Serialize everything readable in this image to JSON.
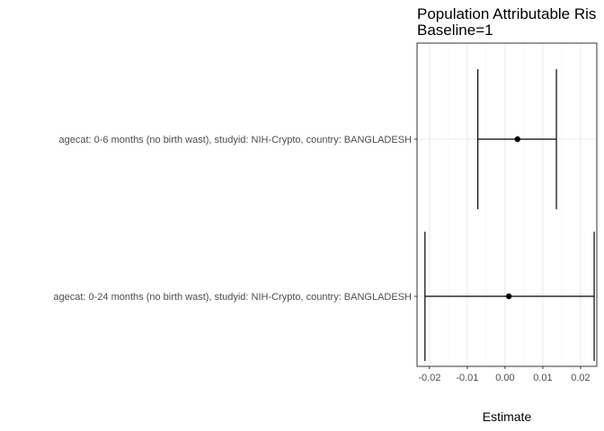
{
  "chart_data": {
    "type": "errorbar",
    "title": "Population Attributable Ris",
    "subtitle": "Baseline=1",
    "xlabel": "Estimate",
    "ylabel": "",
    "xlim": [
      -0.0233,
      0.0243
    ],
    "xticks": [
      "-0.02",
      "-0.01",
      "0.00",
      "0.01",
      "0.02"
    ],
    "xtick_values": [
      -0.02,
      -0.01,
      0.0,
      0.01,
      0.02
    ],
    "grid": true,
    "categories": [
      "agecat: 0-6 months (no birth wast), studyid: NIH-Crypto, country: BANGLADESH",
      "agecat: 0-24 months (no birth wast), studyid: NIH-Crypto, country: BANGLADESH"
    ],
    "estimates": [
      0.0033,
      0.001
    ],
    "ci_lower": [
      -0.0072,
      -0.0212
    ],
    "ci_upper": [
      0.0136,
      0.0236
    ]
  },
  "colors": {
    "panel_border": "#333333",
    "grid_major": "#ebebeb",
    "grid_minor": "#f5f5f5",
    "marks": "#000000"
  }
}
